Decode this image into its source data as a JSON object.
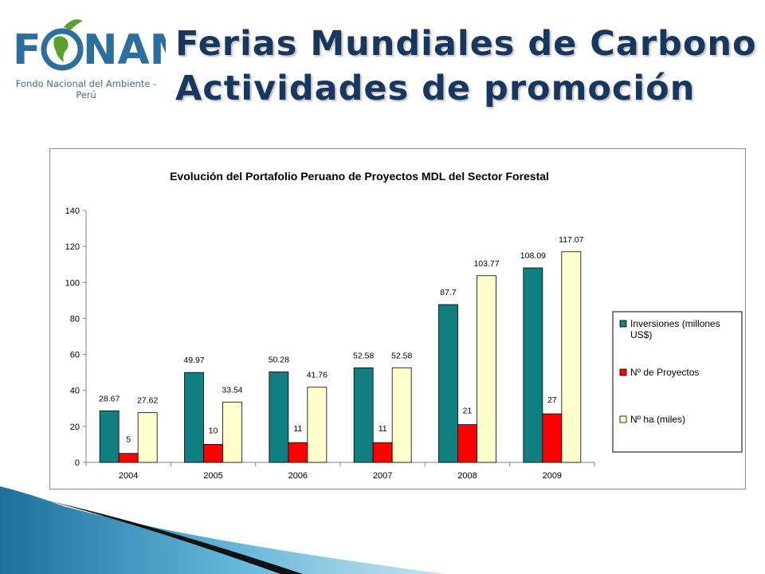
{
  "header": {
    "logo_text": "FONAM",
    "logo_subtitle": "Fondo Nacional del Ambiente - Perú",
    "title_line1": "Ferias Mundiales de Carbono",
    "title_line2": "Actividades de promoción"
  },
  "colors": {
    "title": "#17375e",
    "logo_blue": "#2c6e9e",
    "logo_green": "#5aa02c",
    "series_teal": "#0f7f7f",
    "series_red": "#ff0000",
    "series_cream": "#ffffcc"
  },
  "chart_data": {
    "type": "bar",
    "title": "Evolución del Portafolio Peruano de Proyectos MDL del Sector Forestal",
    "categories": [
      "2004",
      "2005",
      "2006",
      "2007",
      "2008",
      "2009"
    ],
    "series": [
      {
        "name": "Inversiones (millones US$)",
        "values": [
          28.67,
          49.97,
          50.28,
          52.58,
          87.7,
          108.09
        ],
        "labels": [
          "28.67",
          "49.97",
          "50.28",
          "52.58",
          "87.7",
          "108.09"
        ]
      },
      {
        "name": "Nº de Proyectos",
        "values": [
          5,
          10,
          11,
          11,
          21,
          27
        ],
        "labels": [
          "5",
          "10",
          "11",
          "11",
          "21",
          "27"
        ]
      },
      {
        "name": "Nº ha (miles)",
        "values": [
          27.62,
          33.54,
          41.76,
          52.58,
          103.77,
          117.07
        ],
        "labels": [
          "27.62",
          "33.54",
          "41.76",
          "52.58",
          "103.77",
          "117.07"
        ]
      }
    ],
    "ylim": [
      0,
      140
    ],
    "yticks": [
      "0",
      "20",
      "40",
      "60",
      "80",
      "100",
      "120",
      "140"
    ],
    "grid": false,
    "legend_position": "right"
  }
}
